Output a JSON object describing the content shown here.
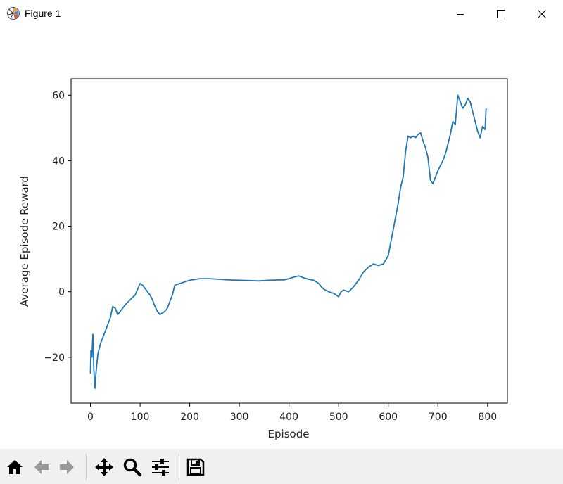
{
  "window": {
    "title": "Figure 1",
    "icon": "matplotlib-icon",
    "controls": [
      "minimize-icon",
      "maximize-icon",
      "close-icon"
    ]
  },
  "toolbar": {
    "buttons": [
      "home-icon",
      "back-icon",
      "forward-icon",
      "pan-icon",
      "zoom-icon",
      "configure-subplots-icon",
      "save-icon"
    ]
  },
  "chart_data": {
    "type": "line",
    "title": "",
    "xlabel": "Episode",
    "ylabel": "Average Episode Reward",
    "xlim": [
      -39,
      840
    ],
    "ylim": [
      -34,
      65
    ],
    "xticks": [
      0,
      100,
      200,
      300,
      400,
      500,
      600,
      700,
      800
    ],
    "yticks": [
      -20,
      0,
      20,
      40,
      60
    ],
    "xtick_labels": [
      "0",
      "100",
      "200",
      "300",
      "400",
      "500",
      "600",
      "700",
      "800"
    ],
    "ytick_labels": [
      "−20",
      "0",
      "20",
      "40",
      "60"
    ],
    "grid": false,
    "color": "#1f77b4",
    "x": [
      0,
      1,
      3,
      5,
      7,
      9,
      11,
      15,
      20,
      25,
      30,
      35,
      40,
      45,
      50,
      55,
      60,
      65,
      70,
      80,
      90,
      100,
      105,
      110,
      115,
      120,
      125,
      130,
      135,
      140,
      145,
      150,
      155,
      160,
      165,
      170,
      180,
      190,
      200,
      220,
      240,
      260,
      280,
      300,
      320,
      340,
      360,
      380,
      390,
      400,
      410,
      420,
      430,
      440,
      450,
      460,
      465,
      470,
      480,
      490,
      500,
      505,
      510,
      520,
      530,
      540,
      550,
      560,
      570,
      580,
      590,
      600,
      605,
      610,
      615,
      620,
      625,
      630,
      635,
      640,
      645,
      650,
      655,
      660,
      665,
      670,
      675,
      680,
      685,
      690,
      695,
      700,
      705,
      710,
      715,
      720,
      725,
      730,
      735,
      740,
      745,
      750,
      755,
      760,
      765,
      770,
      775,
      780,
      785,
      790,
      795,
      797
    ],
    "y": [
      -25,
      -18,
      -20,
      -13,
      -24,
      -29.5,
      -25,
      -19,
      -16,
      -14,
      -12,
      -10,
      -8,
      -4.5,
      -5,
      -7,
      -6,
      -5,
      -4,
      -2.5,
      -1,
      2.5,
      2,
      1,
      0,
      -1,
      -2.5,
      -4.5,
      -6,
      -7,
      -6.5,
      -6,
      -5,
      -3,
      -1,
      2,
      2.5,
      3,
      3.5,
      4,
      4,
      3.8,
      3.6,
      3.5,
      3.4,
      3.3,
      3.5,
      3.6,
      3.6,
      4,
      4.5,
      4.8,
      4.2,
      3.8,
      3.5,
      2.5,
      1.5,
      0.8,
      0,
      -0.5,
      -1.5,
      0,
      0.5,
      0,
      1.5,
      3.5,
      6,
      7.5,
      8.5,
      8,
      8.5,
      11,
      15,
      19,
      23,
      27,
      32,
      35,
      43,
      47.5,
      47,
      47.5,
      47,
      48,
      48.5,
      46,
      44,
      41,
      34,
      33,
      35,
      37,
      38.5,
      40,
      42,
      45,
      48,
      52,
      51,
      60,
      58,
      56,
      57,
      59,
      58,
      55,
      52,
      49,
      47,
      50.5,
      49.5,
      56
    ]
  }
}
